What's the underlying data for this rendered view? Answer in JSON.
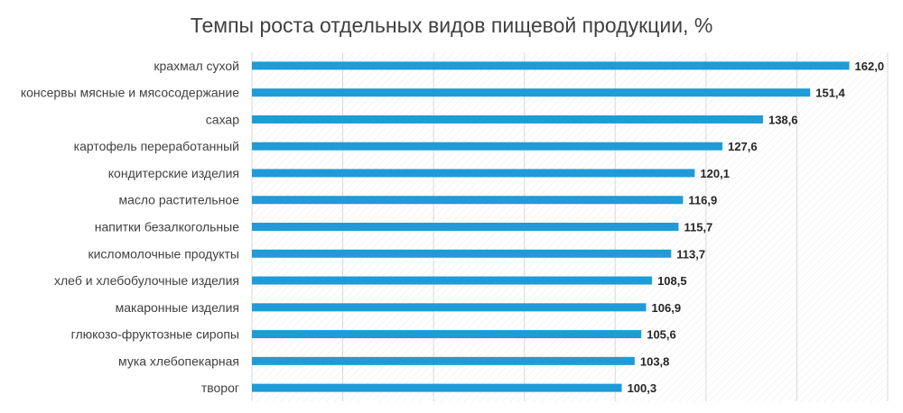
{
  "chart_data": {
    "type": "bar",
    "orientation": "horizontal",
    "title": "Темпы роста отдельных видов пищевой продукции, %",
    "categories": [
      "крахмал сухой",
      "консервы мясные и мясосодержание",
      "сахар",
      "картофель переработанный",
      "кондитерские изделия",
      "масло растительное",
      "напитки безалкогольные",
      "кисломолочные продукты",
      "хлеб и хлебобулочные изделия",
      "макаронные изделия",
      "глюкозо-фруктозные сиропы",
      "мука хлебопекарная",
      "творог"
    ],
    "values": [
      162.0,
      151.4,
      138.6,
      127.6,
      120.1,
      116.9,
      115.7,
      113.7,
      108.5,
      106.9,
      105.6,
      103.8,
      100.3
    ],
    "value_labels": [
      "162,0",
      "151,4",
      "138,6",
      "127,6",
      "120,1",
      "116,9",
      "115,7",
      "113,7",
      "108,5",
      "106,9",
      "105,6",
      "103,8",
      "100,3"
    ],
    "xlim": [
      0,
      172.4
    ],
    "grid": true,
    "bar_color": "#1f9bd7",
    "legend": "none"
  }
}
